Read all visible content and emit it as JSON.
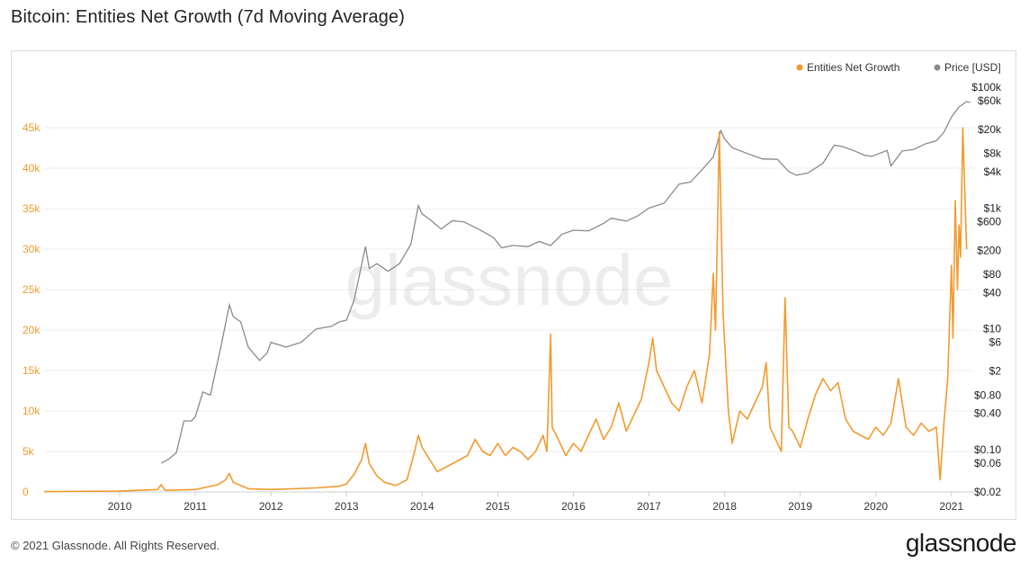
{
  "title": "Bitcoin: Entities Net Growth (7d Moving Average)",
  "footer": {
    "copyright": "© 2021 Glassnode. All Rights Reserved.",
    "logo": "glassnode"
  },
  "watermark": "glassnode",
  "colors": {
    "growth": "#f29a2e",
    "price": "#8a8a8a",
    "grid": "#ececec"
  },
  "chart_data": {
    "type": "line",
    "legend": [
      {
        "name": "Entities Net Growth",
        "color": "#f29a2e"
      },
      {
        "name": "Price [USD]",
        "color": "#8a8a8a"
      }
    ],
    "left_axis": {
      "min": 0,
      "max": 50000,
      "ticks": [
        0,
        5000,
        10000,
        15000,
        20000,
        25000,
        30000,
        35000,
        40000,
        45000
      ],
      "tick_labels": [
        "0",
        "5k",
        "10k",
        "15k",
        "20k",
        "25k",
        "30k",
        "35k",
        "40k",
        "45k"
      ]
    },
    "right_axis": {
      "scale": "log",
      "min": 0.02,
      "max": 100000,
      "ticks": [
        0.02,
        0.06,
        0.1,
        0.4,
        0.8,
        2,
        6,
        10,
        40,
        80,
        200,
        600,
        1000,
        4000,
        8000,
        20000,
        60000,
        100000
      ],
      "tick_labels": [
        "$0.02",
        "$0.06",
        "$0.10",
        "$0.40",
        "$0.80",
        "$2",
        "$6",
        "$10",
        "$40",
        "$80",
        "$200",
        "$600",
        "$1k",
        "$4k",
        "$8k",
        "$20k",
        "$60k",
        "$100k"
      ]
    },
    "x_axis": {
      "min": 2009.0,
      "max": 2021.3,
      "ticks": [
        2010,
        2011,
        2012,
        2013,
        2014,
        2015,
        2016,
        2017,
        2018,
        2019,
        2020,
        2021
      ],
      "tick_labels": [
        "2010",
        "2011",
        "2012",
        "2013",
        "2014",
        "2015",
        "2016",
        "2017",
        "2018",
        "2019",
        "2020",
        "2021"
      ]
    },
    "series": [
      {
        "name": "Entities Net Growth",
        "axis": "left",
        "points": [
          [
            2009.0,
            50
          ],
          [
            2010.0,
            100
          ],
          [
            2010.5,
            300
          ],
          [
            2010.55,
            900
          ],
          [
            2010.6,
            200
          ],
          [
            2011.0,
            300
          ],
          [
            2011.3,
            900
          ],
          [
            2011.4,
            1500
          ],
          [
            2011.45,
            2300
          ],
          [
            2011.5,
            1200
          ],
          [
            2011.7,
            400
          ],
          [
            2012.0,
            300
          ],
          [
            2012.3,
            400
          ],
          [
            2012.6,
            500
          ],
          [
            2012.9,
            700
          ],
          [
            2013.0,
            1000
          ],
          [
            2013.1,
            2200
          ],
          [
            2013.2,
            4000
          ],
          [
            2013.25,
            6000
          ],
          [
            2013.3,
            3500
          ],
          [
            2013.4,
            2000
          ],
          [
            2013.5,
            1200
          ],
          [
            2013.65,
            800
          ],
          [
            2013.8,
            1500
          ],
          [
            2013.9,
            5000
          ],
          [
            2013.95,
            7000
          ],
          [
            2014.0,
            5500
          ],
          [
            2014.1,
            4000
          ],
          [
            2014.2,
            2500
          ],
          [
            2014.3,
            3000
          ],
          [
            2014.4,
            3500
          ],
          [
            2014.5,
            4000
          ],
          [
            2014.6,
            4500
          ],
          [
            2014.7,
            6500
          ],
          [
            2014.8,
            5000
          ],
          [
            2014.9,
            4500
          ],
          [
            2015.0,
            6000
          ],
          [
            2015.1,
            4500
          ],
          [
            2015.2,
            5500
          ],
          [
            2015.3,
            5000
          ],
          [
            2015.4,
            4000
          ],
          [
            2015.5,
            5000
          ],
          [
            2015.6,
            7000
          ],
          [
            2015.65,
            5000
          ],
          [
            2015.7,
            19500
          ],
          [
            2015.72,
            8000
          ],
          [
            2015.8,
            6500
          ],
          [
            2015.9,
            4500
          ],
          [
            2016.0,
            6000
          ],
          [
            2016.1,
            5000
          ],
          [
            2016.2,
            7000
          ],
          [
            2016.3,
            9000
          ],
          [
            2016.4,
            6500
          ],
          [
            2016.5,
            8000
          ],
          [
            2016.6,
            11000
          ],
          [
            2016.7,
            7500
          ],
          [
            2016.8,
            9500
          ],
          [
            2016.9,
            11500
          ],
          [
            2017.0,
            16000
          ],
          [
            2017.05,
            19000
          ],
          [
            2017.1,
            15000
          ],
          [
            2017.2,
            13000
          ],
          [
            2017.3,
            11000
          ],
          [
            2017.4,
            10000
          ],
          [
            2017.5,
            13000
          ],
          [
            2017.6,
            15000
          ],
          [
            2017.7,
            11000
          ],
          [
            2017.8,
            17000
          ],
          [
            2017.85,
            27000
          ],
          [
            2017.88,
            20000
          ],
          [
            2017.93,
            44500
          ],
          [
            2017.98,
            22000
          ],
          [
            2018.05,
            10000
          ],
          [
            2018.1,
            6000
          ],
          [
            2018.2,
            10000
          ],
          [
            2018.3,
            9000
          ],
          [
            2018.4,
            11000
          ],
          [
            2018.5,
            13000
          ],
          [
            2018.55,
            16000
          ],
          [
            2018.6,
            8000
          ],
          [
            2018.7,
            6000
          ],
          [
            2018.75,
            5000
          ],
          [
            2018.8,
            24000
          ],
          [
            2018.85,
            8000
          ],
          [
            2018.9,
            7500
          ],
          [
            2019.0,
            5500
          ],
          [
            2019.1,
            9000
          ],
          [
            2019.2,
            12000
          ],
          [
            2019.3,
            14000
          ],
          [
            2019.4,
            12500
          ],
          [
            2019.5,
            13500
          ],
          [
            2019.6,
            9000
          ],
          [
            2019.7,
            7500
          ],
          [
            2019.8,
            7000
          ],
          [
            2019.9,
            6500
          ],
          [
            2020.0,
            8000
          ],
          [
            2020.1,
            7000
          ],
          [
            2020.2,
            8500
          ],
          [
            2020.3,
            14000
          ],
          [
            2020.4,
            8000
          ],
          [
            2020.5,
            7000
          ],
          [
            2020.6,
            8500
          ],
          [
            2020.7,
            7500
          ],
          [
            2020.8,
            8000
          ],
          [
            2020.85,
            1500
          ],
          [
            2020.9,
            8500
          ],
          [
            2020.95,
            14000
          ],
          [
            2021.0,
            28000
          ],
          [
            2021.02,
            19000
          ],
          [
            2021.05,
            36000
          ],
          [
            2021.08,
            25000
          ],
          [
            2021.1,
            33000
          ],
          [
            2021.12,
            29000
          ],
          [
            2021.15,
            45000
          ],
          [
            2021.2,
            30000
          ]
        ]
      },
      {
        "name": "Price [USD]",
        "axis": "right",
        "points": [
          [
            2010.55,
            0.06
          ],
          [
            2010.65,
            0.07
          ],
          [
            2010.75,
            0.09
          ],
          [
            2010.85,
            0.3
          ],
          [
            2010.95,
            0.3
          ],
          [
            2011.0,
            0.35
          ],
          [
            2011.1,
            0.9
          ],
          [
            2011.2,
            0.8
          ],
          [
            2011.35,
            6
          ],
          [
            2011.45,
            25
          ],
          [
            2011.5,
            16
          ],
          [
            2011.6,
            13
          ],
          [
            2011.7,
            5
          ],
          [
            2011.85,
            3
          ],
          [
            2011.95,
            4
          ],
          [
            2012.0,
            6
          ],
          [
            2012.2,
            5
          ],
          [
            2012.4,
            6
          ],
          [
            2012.6,
            10
          ],
          [
            2012.8,
            11
          ],
          [
            2012.9,
            13
          ],
          [
            2013.0,
            14
          ],
          [
            2013.1,
            30
          ],
          [
            2013.25,
            230
          ],
          [
            2013.3,
            100
          ],
          [
            2013.4,
            120
          ],
          [
            2013.55,
            90
          ],
          [
            2013.7,
            120
          ],
          [
            2013.85,
            250
          ],
          [
            2013.95,
            1100
          ],
          [
            2014.0,
            800
          ],
          [
            2014.1,
            650
          ],
          [
            2014.25,
            450
          ],
          [
            2014.4,
            620
          ],
          [
            2014.55,
            590
          ],
          [
            2014.7,
            480
          ],
          [
            2014.85,
            380
          ],
          [
            2014.95,
            320
          ],
          [
            2015.05,
            220
          ],
          [
            2015.2,
            240
          ],
          [
            2015.4,
            230
          ],
          [
            2015.55,
            280
          ],
          [
            2015.7,
            240
          ],
          [
            2015.85,
            370
          ],
          [
            2016.0,
            430
          ],
          [
            2016.2,
            420
          ],
          [
            2016.4,
            560
          ],
          [
            2016.5,
            680
          ],
          [
            2016.7,
            610
          ],
          [
            2016.85,
            740
          ],
          [
            2017.0,
            1000
          ],
          [
            2017.2,
            1200
          ],
          [
            2017.4,
            2500
          ],
          [
            2017.55,
            2700
          ],
          [
            2017.7,
            4300
          ],
          [
            2017.85,
            7000
          ],
          [
            2017.95,
            19000
          ],
          [
            2018.0,
            14000
          ],
          [
            2018.1,
            10000
          ],
          [
            2018.3,
            8000
          ],
          [
            2018.5,
            6500
          ],
          [
            2018.7,
            6400
          ],
          [
            2018.85,
            4000
          ],
          [
            2018.95,
            3500
          ],
          [
            2019.1,
            3800
          ],
          [
            2019.3,
            5500
          ],
          [
            2019.45,
            11000
          ],
          [
            2019.55,
            10500
          ],
          [
            2019.7,
            9000
          ],
          [
            2019.85,
            7500
          ],
          [
            2019.95,
            7200
          ],
          [
            2020.15,
            9000
          ],
          [
            2020.2,
            5000
          ],
          [
            2020.35,
            8800
          ],
          [
            2020.5,
            9300
          ],
          [
            2020.65,
            11500
          ],
          [
            2020.8,
            13000
          ],
          [
            2020.9,
            18000
          ],
          [
            2021.0,
            32000
          ],
          [
            2021.1,
            47000
          ],
          [
            2021.2,
            58000
          ],
          [
            2021.25,
            56000
          ]
        ]
      }
    ]
  }
}
